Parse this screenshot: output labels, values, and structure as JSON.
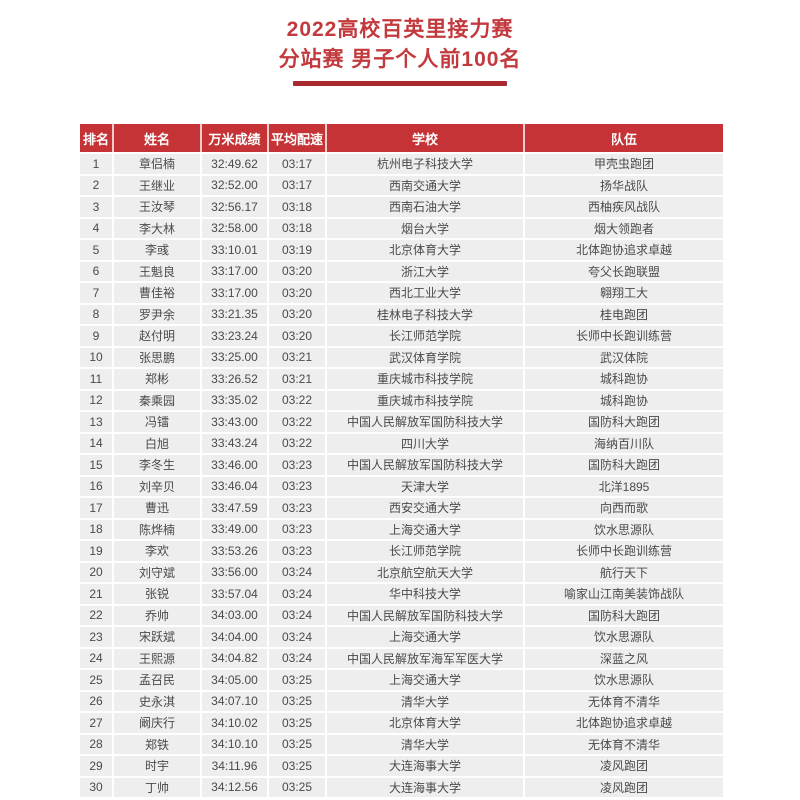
{
  "page": {
    "title_line1": "2022高校百英里接力赛",
    "title_line2": "分站赛 男子个人前100名"
  },
  "colors": {
    "title_red": "#c23a3d",
    "underline_red": "#a8292d",
    "header_red": "#c53336",
    "row_bg": "#eeeeef",
    "body_text": "#4a4a4a"
  },
  "table": {
    "columns": {
      "rank": "排名",
      "name": "姓名",
      "time": "万米成绩",
      "pace": "平均配速",
      "school": "学校",
      "team": "队伍"
    },
    "rows": [
      {
        "rank": "1",
        "name": "章侣楠",
        "time": "32:49.62",
        "pace": "03:17",
        "school": "杭州电子科技大学",
        "team": "甲壳虫跑团"
      },
      {
        "rank": "2",
        "name": "王继业",
        "time": "32:52.00",
        "pace": "03:17",
        "school": "西南交通大学",
        "team": "扬华战队"
      },
      {
        "rank": "3",
        "name": "王汝琴",
        "time": "32:56.17",
        "pace": "03:18",
        "school": "西南石油大学",
        "team": "西柚疾风战队"
      },
      {
        "rank": "4",
        "name": "李大林",
        "time": "32:58.00",
        "pace": "03:18",
        "school": "烟台大学",
        "team": "烟大领跑者"
      },
      {
        "rank": "5",
        "name": "李彧",
        "time": "33:10.01",
        "pace": "03:19",
        "school": "北京体育大学",
        "team": "北体跑协追求卓越"
      },
      {
        "rank": "6",
        "name": "王魁良",
        "time": "33:17.00",
        "pace": "03:20",
        "school": "浙江大学",
        "team": "夸父长跑联盟"
      },
      {
        "rank": "7",
        "name": "曹佳裕",
        "time": "33:17.00",
        "pace": "03:20",
        "school": "西北工业大学",
        "team": "翱翔工大"
      },
      {
        "rank": "8",
        "name": "罗尹余",
        "time": "33:21.35",
        "pace": "03:20",
        "school": "桂林电子科技大学",
        "team": "桂电跑团"
      },
      {
        "rank": "9",
        "name": "赵付明",
        "time": "33:23.24",
        "pace": "03:20",
        "school": "长江师范学院",
        "team": "长师中长跑训练营"
      },
      {
        "rank": "10",
        "name": "张思鹏",
        "time": "33:25.00",
        "pace": "03:21",
        "school": "武汉体育学院",
        "team": "武汉体院"
      },
      {
        "rank": "11",
        "name": "郑彬",
        "time": "33:26.52",
        "pace": "03:21",
        "school": "重庆城市科技学院",
        "team": "城科跑协"
      },
      {
        "rank": "12",
        "name": "秦乘园",
        "time": "33:35.02",
        "pace": "03:22",
        "school": "重庆城市科技学院",
        "team": "城科跑协"
      },
      {
        "rank": "13",
        "name": "冯镭",
        "time": "33:43.00",
        "pace": "03:22",
        "school": "中国人民解放军国防科技大学",
        "team": "国防科大跑团"
      },
      {
        "rank": "14",
        "name": "白旭",
        "time": "33:43.24",
        "pace": "03:22",
        "school": "四川大学",
        "team": "海纳百川队"
      },
      {
        "rank": "15",
        "name": "李冬生",
        "time": "33:46.00",
        "pace": "03:23",
        "school": "中国人民解放军国防科技大学",
        "team": "国防科大跑团"
      },
      {
        "rank": "16",
        "name": "刘辛贝",
        "time": "33:46.04",
        "pace": "03:23",
        "school": "天津大学",
        "team": "北洋1895"
      },
      {
        "rank": "17",
        "name": "曹迅",
        "time": "33:47.59",
        "pace": "03:23",
        "school": "西安交通大学",
        "team": "向西而歌"
      },
      {
        "rank": "18",
        "name": "陈烨楠",
        "time": "33:49.00",
        "pace": "03:23",
        "school": "上海交通大学",
        "team": "饮水思源队"
      },
      {
        "rank": "19",
        "name": "李欢",
        "time": "33:53.26",
        "pace": "03:23",
        "school": "长江师范学院",
        "team": "长师中长跑训练营"
      },
      {
        "rank": "20",
        "name": "刘守斌",
        "time": "33:56.00",
        "pace": "03:24",
        "school": "北京航空航天大学",
        "team": "航行天下"
      },
      {
        "rank": "21",
        "name": "张锐",
        "time": "33:57.04",
        "pace": "03:24",
        "school": "华中科技大学",
        "team": "喻家山江南美装饰战队"
      },
      {
        "rank": "22",
        "name": "乔帅",
        "time": "34:03.00",
        "pace": "03:24",
        "school": "中国人民解放军国防科技大学",
        "team": "国防科大跑团"
      },
      {
        "rank": "23",
        "name": "宋跃斌",
        "time": "34:04.00",
        "pace": "03:24",
        "school": "上海交通大学",
        "team": "饮水思源队"
      },
      {
        "rank": "24",
        "name": "王熙源",
        "time": "34:04.82",
        "pace": "03:24",
        "school": "中国人民解放军海军军医大学",
        "team": "深蓝之风"
      },
      {
        "rank": "25",
        "name": "孟召民",
        "time": "34:05.00",
        "pace": "03:25",
        "school": "上海交通大学",
        "team": "饮水思源队"
      },
      {
        "rank": "26",
        "name": "史永淇",
        "time": "34:07.10",
        "pace": "03:25",
        "school": "清华大学",
        "team": "无体育不清华"
      },
      {
        "rank": "27",
        "name": "阚庆行",
        "time": "34:10.02",
        "pace": "03:25",
        "school": "北京体育大学",
        "team": "北体跑协追求卓越"
      },
      {
        "rank": "28",
        "name": "郑铁",
        "time": "34:10.10",
        "pace": "03:25",
        "school": "清华大学",
        "team": "无体育不清华"
      },
      {
        "rank": "29",
        "name": "时宇",
        "time": "34:11.96",
        "pace": "03:25",
        "school": "大连海事大学",
        "team": "凌风跑团"
      },
      {
        "rank": "30",
        "name": "丁帅",
        "time": "34:12.56",
        "pace": "03:25",
        "school": "大连海事大学",
        "team": "凌风跑团"
      }
    ]
  }
}
